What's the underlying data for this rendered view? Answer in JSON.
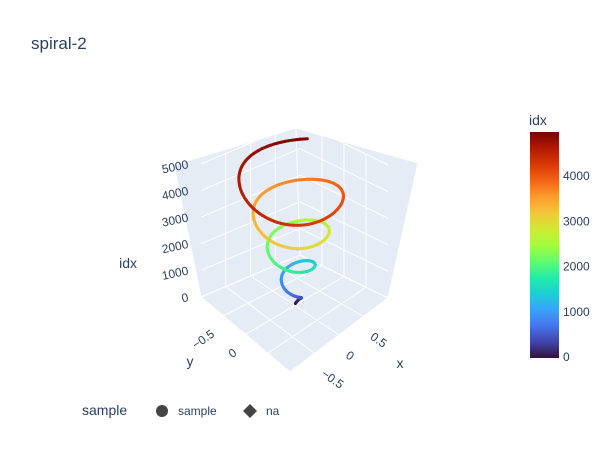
{
  "title": "spiral-2",
  "colorbar": {
    "title": "idx",
    "ticks": [
      "0",
      "1000",
      "2000",
      "3000",
      "4000"
    ],
    "colorscale": [
      "#30123b",
      "#4145ab",
      "#4675ed",
      "#39a2fc",
      "#1bcfd4",
      "#24eca6",
      "#61fc6c",
      "#a4fc3b",
      "#d1e834",
      "#f3c63a",
      "#fe9b2d",
      "#f36315",
      "#d93806",
      "#b11901",
      "#7a0402"
    ]
  },
  "legend": {
    "title": "sample",
    "items": [
      {
        "label": "sample",
        "symbol": "circle",
        "color": "#444444"
      },
      {
        "label": "na",
        "symbol": "diamond",
        "color": "#444444"
      }
    ]
  },
  "chart_data": {
    "type": "scatter3d",
    "title": "spiral-2",
    "mode": "lines",
    "x": {
      "label": "x",
      "ticks": [
        "−0.5",
        "0",
        "0.5"
      ]
    },
    "y": {
      "label": "y",
      "ticks": [
        "−0.5",
        "0"
      ]
    },
    "z": {
      "label": "idx",
      "ticks": [
        "0",
        "1000",
        "2000",
        "3000",
        "4000",
        "5000"
      ],
      "range": [
        0,
        5000
      ]
    },
    "series": [
      {
        "name": "sample",
        "description": "conical spiral with radius growing with idx, colored by idx",
        "idx_range": [
          0,
          4999
        ],
        "turns": 4,
        "radius_range": [
          0.05,
          0.95
        ]
      }
    ],
    "grid": true,
    "legend_position": "bottom-left",
    "background": "#e5ecf6"
  }
}
